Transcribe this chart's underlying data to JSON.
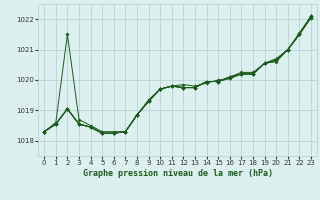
{
  "xlabel": "Graphe pression niveau de la mer (hPa)",
  "ylim": [
    1017.5,
    1022.5
  ],
  "xlim": [
    -0.5,
    23.5
  ],
  "yticks": [
    1018,
    1019,
    1020,
    1021,
    1022
  ],
  "xticks": [
    0,
    1,
    2,
    3,
    4,
    5,
    6,
    7,
    8,
    9,
    10,
    11,
    12,
    13,
    14,
    15,
    16,
    17,
    18,
    19,
    20,
    21,
    22,
    23
  ],
  "bg_color": "#ddf0f0",
  "grid_color": "#aecece",
  "line_color": "#1a5c1a",
  "series": [
    [
      1018.3,
      1018.6,
      1021.5,
      1018.7,
      1018.5,
      1018.3,
      1018.3,
      1018.3,
      1018.85,
      1019.35,
      1019.7,
      1019.8,
      1019.85,
      1019.8,
      1019.9,
      1020.0,
      1020.05,
      1020.2,
      1020.2,
      1020.55,
      1020.65,
      1021.0,
      1021.55,
      1022.1
    ],
    [
      1018.3,
      1018.55,
      1019.05,
      1018.55,
      1018.45,
      1018.25,
      1018.25,
      1018.3,
      1018.85,
      1019.3,
      1019.7,
      1019.8,
      1019.75,
      1019.75,
      1019.95,
      1019.95,
      1020.05,
      1020.2,
      1020.2,
      1020.55,
      1020.6,
      1021.0,
      1021.5,
      1022.05
    ],
    [
      1018.3,
      1018.55,
      1019.05,
      1018.55,
      1018.45,
      1018.25,
      1018.25,
      1018.3,
      1018.85,
      1019.3,
      1019.7,
      1019.8,
      1019.75,
      1019.75,
      1019.95,
      1019.95,
      1020.1,
      1020.2,
      1020.2,
      1020.55,
      1020.65,
      1021.0,
      1021.5,
      1022.05
    ],
    [
      1018.3,
      1018.55,
      1019.05,
      1018.55,
      1018.45,
      1018.25,
      1018.25,
      1018.3,
      1018.85,
      1019.3,
      1019.7,
      1019.8,
      1019.75,
      1019.75,
      1019.95,
      1019.95,
      1020.1,
      1020.2,
      1020.2,
      1020.55,
      1020.65,
      1021.0,
      1021.5,
      1022.1
    ],
    [
      1018.3,
      1018.55,
      1019.05,
      1018.55,
      1018.45,
      1018.25,
      1018.25,
      1018.3,
      1018.85,
      1019.3,
      1019.7,
      1019.8,
      1019.75,
      1019.75,
      1019.95,
      1019.95,
      1020.1,
      1020.25,
      1020.25,
      1020.55,
      1020.7,
      1021.0,
      1021.5,
      1022.1
    ]
  ]
}
